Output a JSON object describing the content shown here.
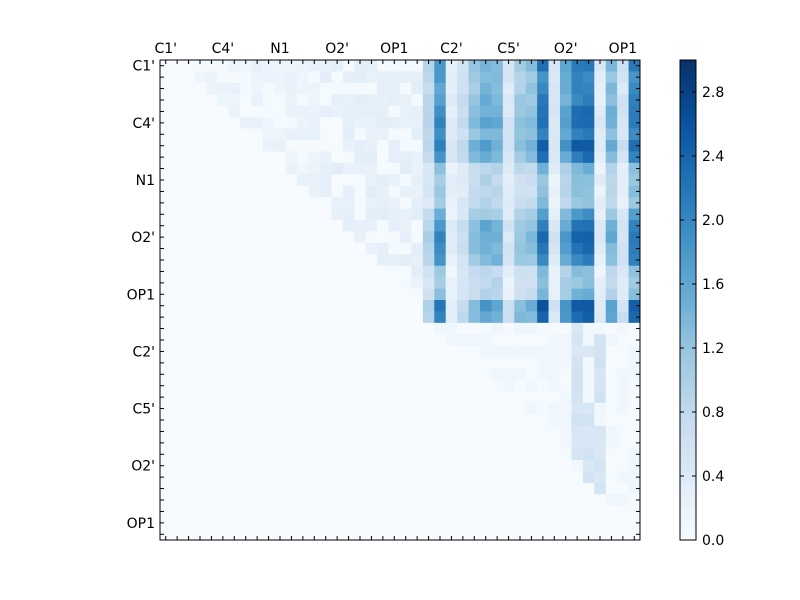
{
  "chart_data": {
    "type": "heatmap",
    "title": "",
    "xlabel": "",
    "ylabel": "",
    "grid_size": 42,
    "x_tick_labels": [
      "C1'",
      "C4'",
      "N1",
      "O2'",
      "OP1",
      "C2'",
      "C5'",
      "O2'",
      "OP1"
    ],
    "y_tick_labels": [
      "C1'",
      "C4'",
      "N1",
      "O2'",
      "OP1",
      "C2'",
      "C5'",
      "O2'",
      "OP1"
    ],
    "tick_label_indices": [
      0,
      5,
      10,
      15,
      20,
      25,
      30,
      35,
      40
    ],
    "colorbar": {
      "min": 0.0,
      "max": 3.0,
      "ticks": [
        0.0,
        0.4,
        0.8,
        1.2,
        1.6,
        2.0,
        2.4,
        2.8
      ],
      "tick_labels": [
        "0.0",
        "0.4",
        "0.8",
        "1.2",
        "1.6",
        "2.0",
        "2.4",
        "2.8"
      ],
      "colormap": "Blues"
    },
    "matrix_description": "upper-triangular distance map; strong block for rows 0-22 x cols 23-41, weak sparse values in rows 23-41 upper triangle",
    "column_profile": [
      0,
      0,
      0,
      0,
      0,
      0,
      0,
      0,
      0,
      0,
      0,
      0,
      0,
      0,
      0,
      0,
      0,
      0,
      0,
      0,
      0,
      0,
      0,
      0.9,
      2.0,
      0.4,
      0.7,
      1.3,
      1.6,
      1.5,
      0.5,
      1.2,
      1.3,
      2.3,
      0.5,
      1.7,
      2.3,
      2.4,
      0.4,
      1.5,
      0.6,
      2.2
    ],
    "row_profile": [
      0.95,
      0.85,
      0.85,
      0.9,
      0.95,
      1.0,
      0.9,
      1.05,
      0.95,
      0.6,
      0.55,
      0.55,
      0.55,
      0.75,
      0.95,
      1.0,
      0.95,
      0.9,
      0.55,
      0.55,
      0.6,
      1.1,
      1.05
    ]
  }
}
